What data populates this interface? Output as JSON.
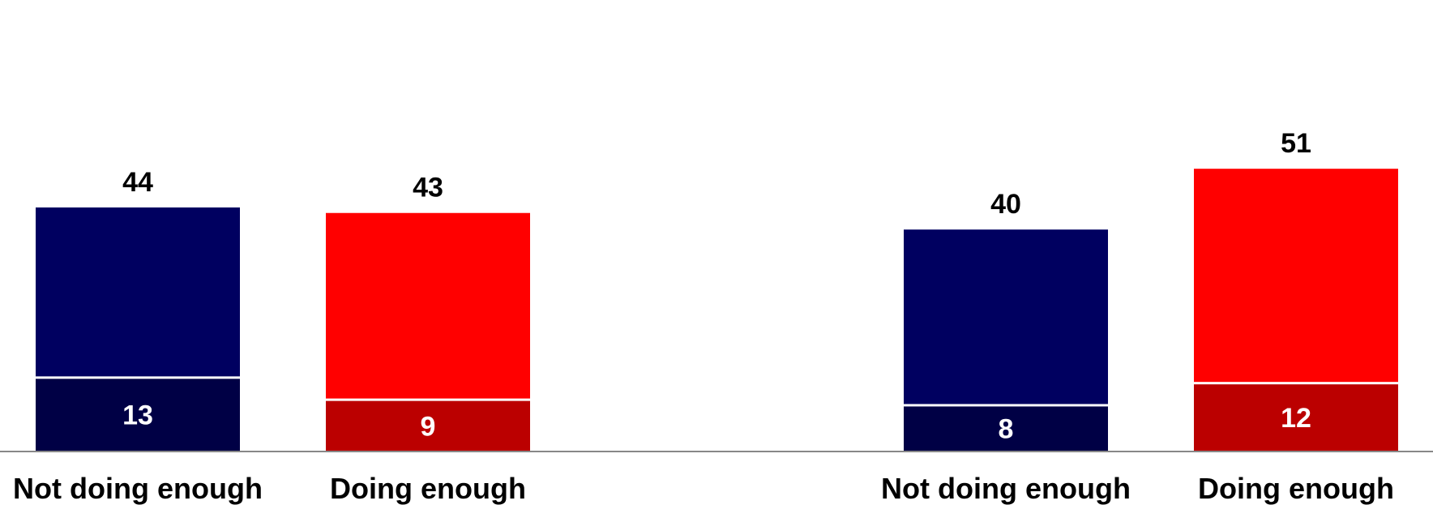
{
  "chart_data": {
    "type": "bar",
    "stacked": true,
    "categories": [
      "Not doing enough",
      "Doing enough",
      "Not doing enough",
      "Doing enough"
    ],
    "series": [
      {
        "values": [
          13,
          9,
          8,
          12
        ]
      },
      {
        "values": [
          31,
          34,
          32,
          39
        ]
      }
    ],
    "totals": [
      44,
      43,
      40,
      51
    ],
    "ylim": [
      0,
      56
    ],
    "grid": false,
    "legend": "none"
  },
  "colors": {
    "bar_top": [
      "#000060",
      "#ff0000",
      "#000060",
      "#ff0000"
    ],
    "bar_bottom": [
      "#000045",
      "#bb0000",
      "#000045",
      "#bb0000"
    ],
    "label": "#000000",
    "inner_label": "#ffffff",
    "separator": "#ffffff",
    "baseline": "#888888"
  }
}
